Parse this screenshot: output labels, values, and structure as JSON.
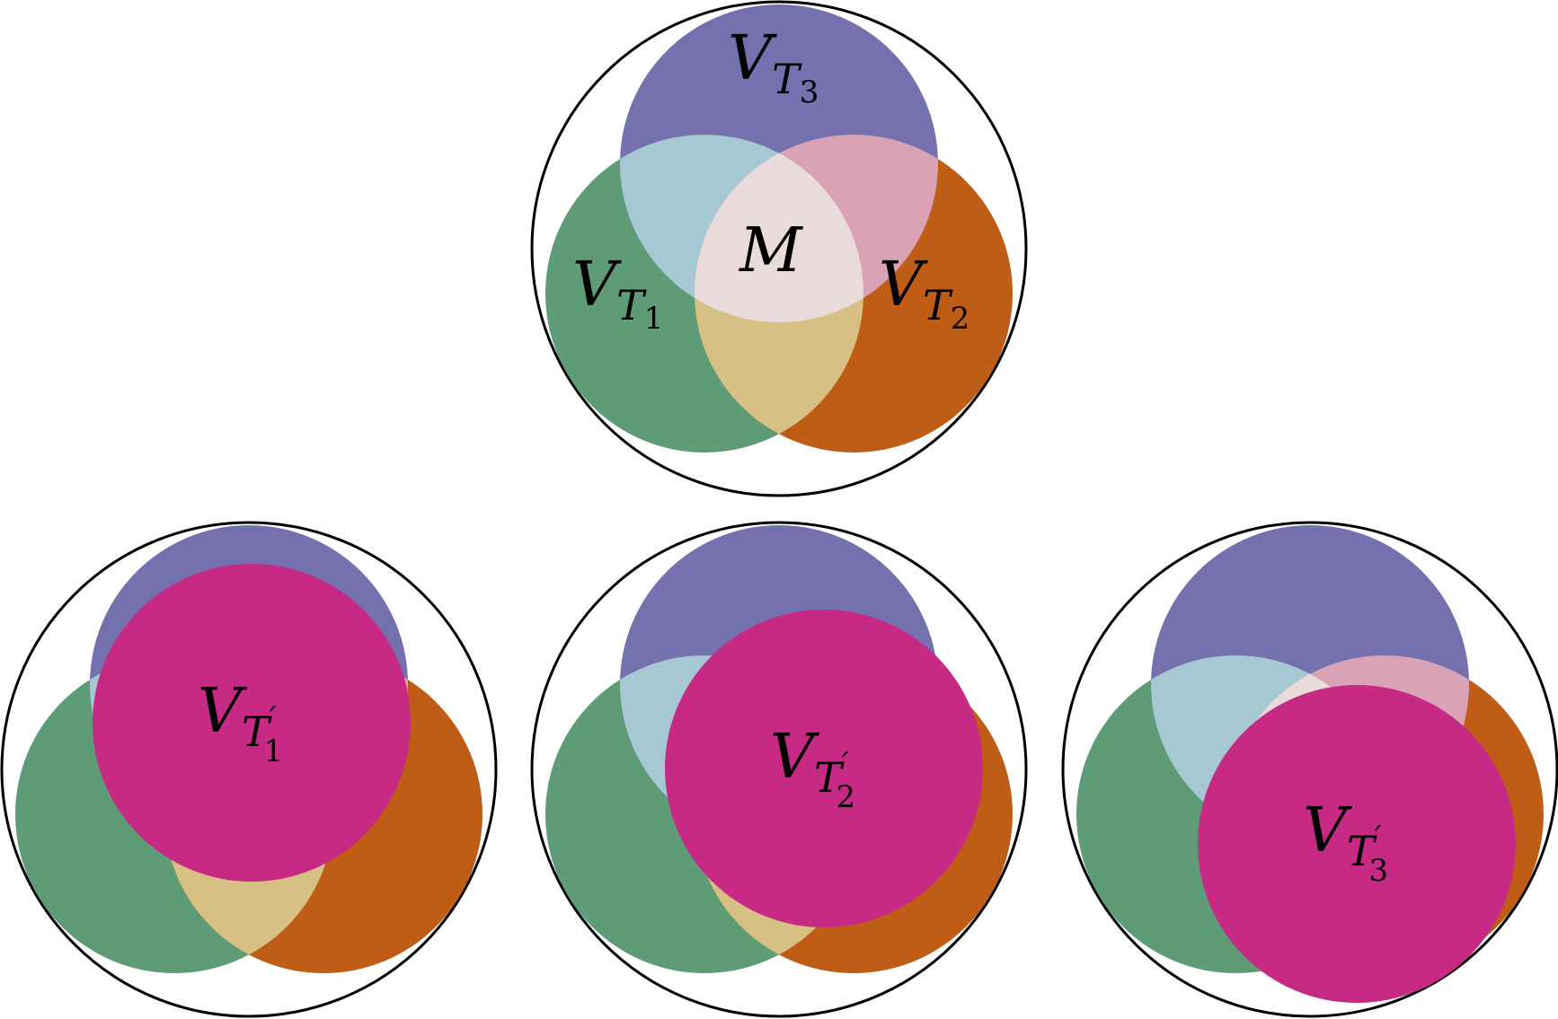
{
  "colors": {
    "t1": "#5e9c77",
    "t2": "#bf5d16",
    "t3": "#7471ae",
    "t12": "#d6c083",
    "t13": "#a6c8d3",
    "t23": "#d9a3b5",
    "m": "#e8dbd9",
    "tprime": "#c72a84",
    "outline": "#000000"
  },
  "labels": {
    "v": "V",
    "t": "T",
    "m": "M",
    "sub1": "1",
    "sub2": "2",
    "sub3": "3",
    "prime": "′"
  }
}
